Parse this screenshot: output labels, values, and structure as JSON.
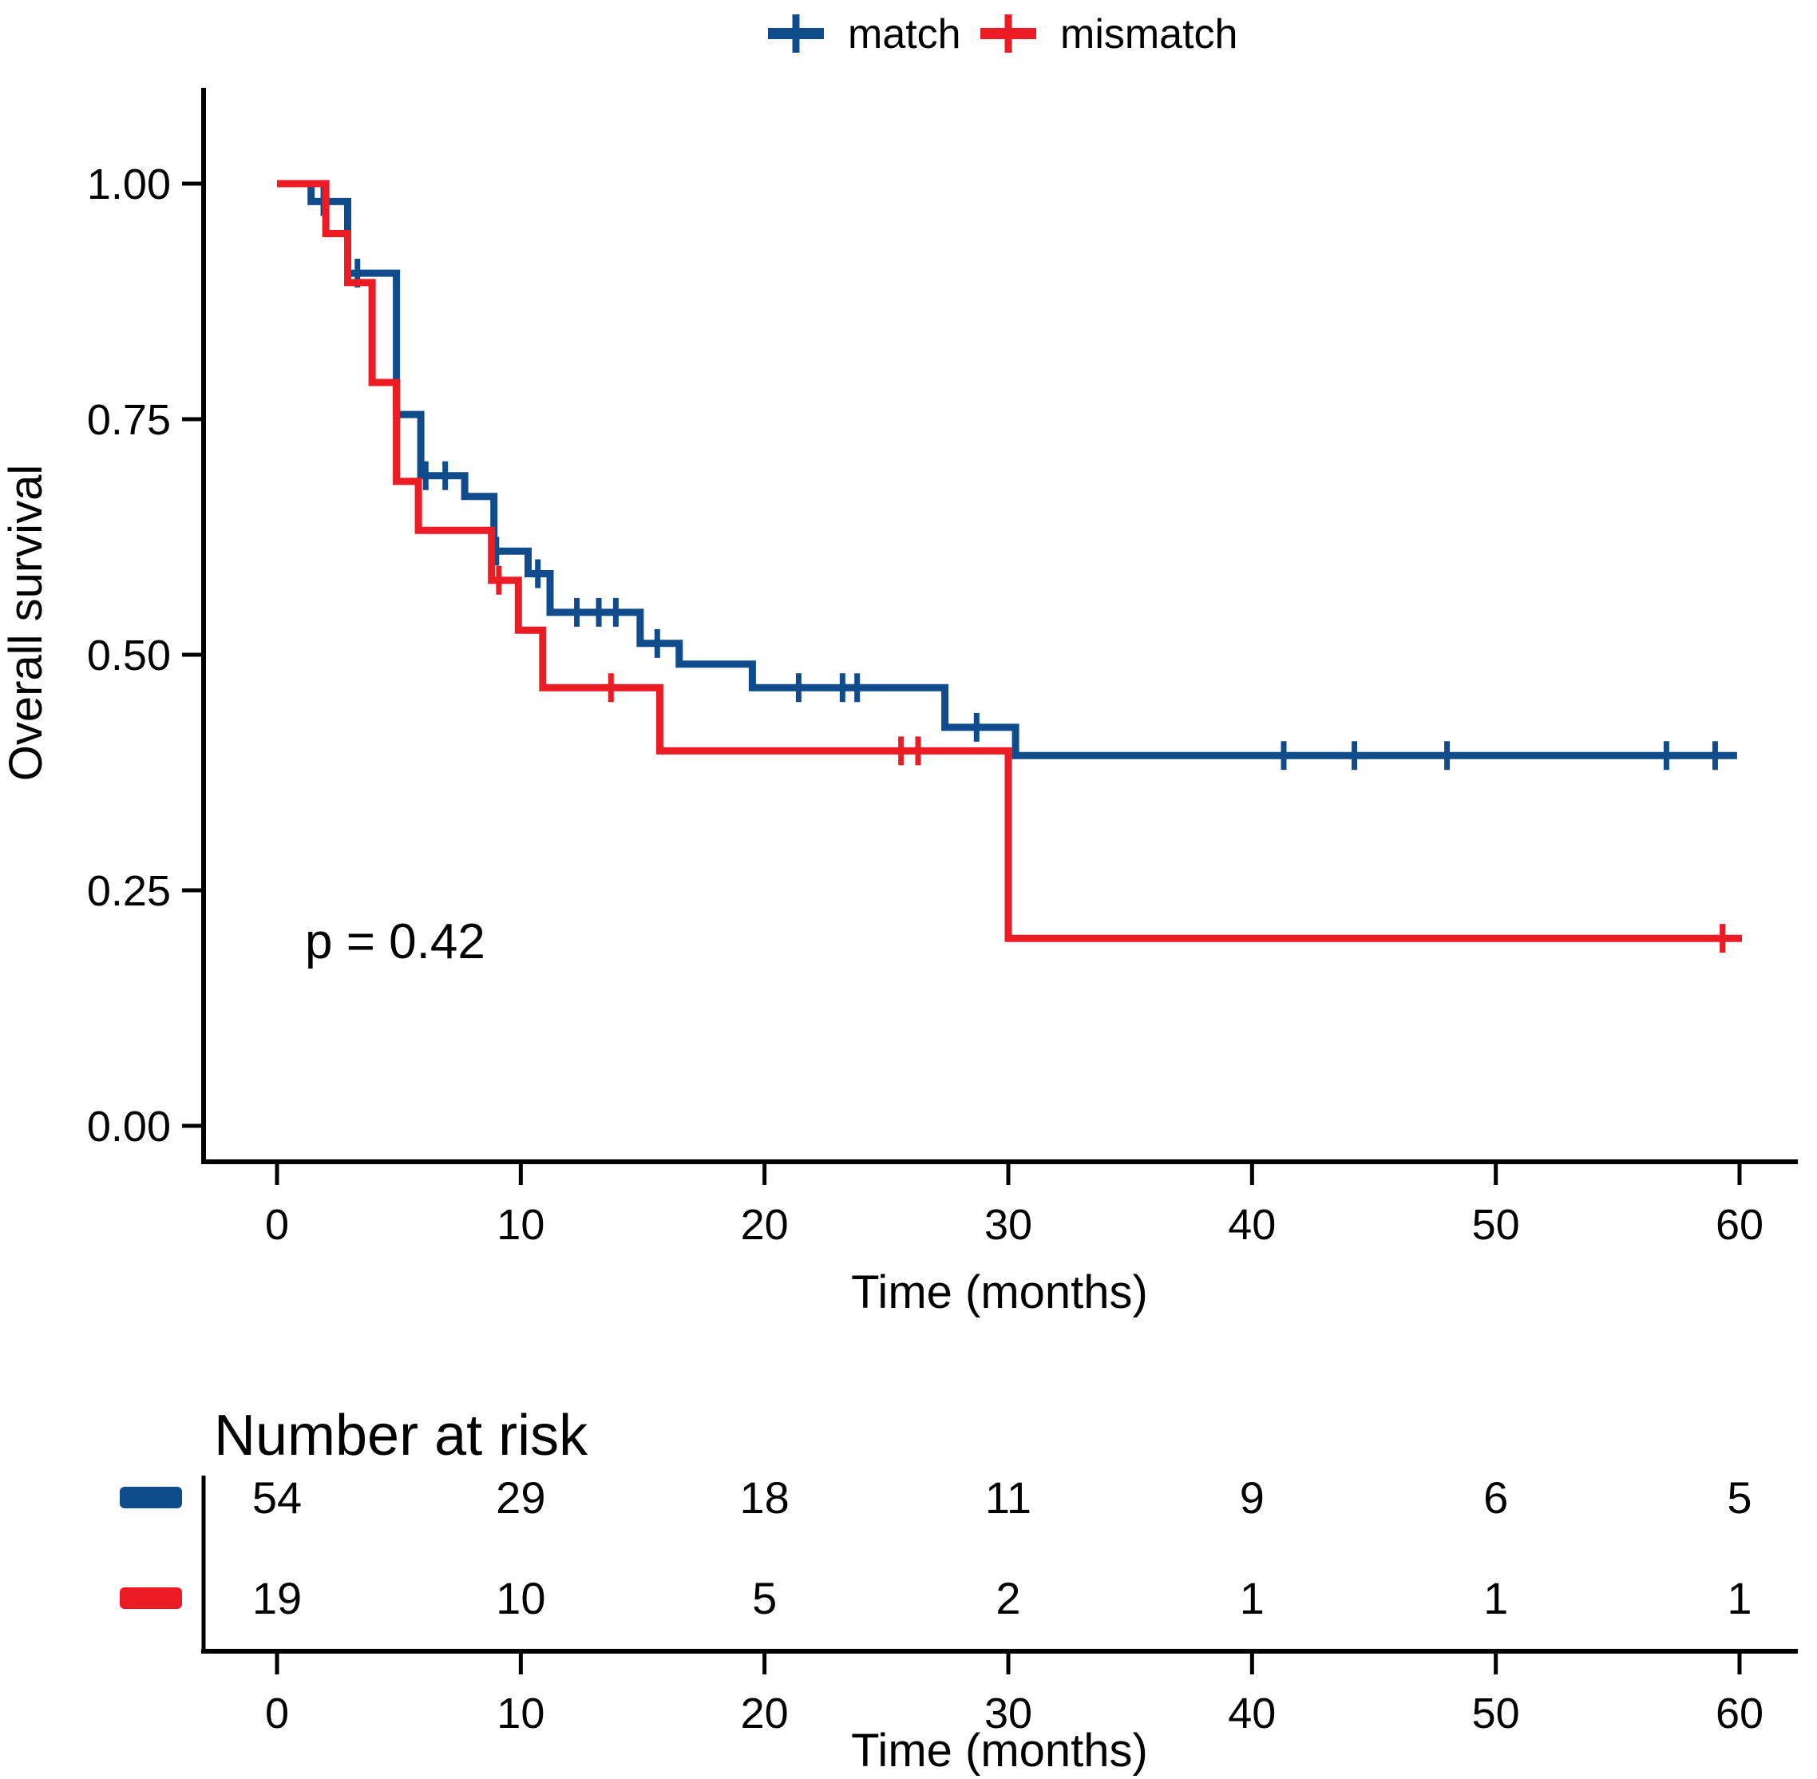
{
  "chart_data": {
    "type": "line",
    "subtype": "kaplan-meier-step",
    "title": "",
    "xlabel": "Time (months)",
    "ylabel": "Overall survival",
    "xlim": [
      0,
      63
    ],
    "ylim": [
      0.0,
      1.0
    ],
    "grid": "off",
    "legend_position": "top-center",
    "x_ticks": [
      0,
      10,
      20,
      30,
      40,
      50,
      60
    ],
    "y_ticks": [
      "1.00",
      "0.75",
      "0.50",
      "0.25",
      "0.00"
    ],
    "p_value_label": "p = 0.42",
    "legend": [
      {
        "label": "match",
        "color": "#104c8c"
      },
      {
        "label": "mismatch",
        "color": "#ec1c24"
      }
    ],
    "series": [
      {
        "name": "match",
        "color": "#104c8c",
        "start": [
          0,
          1.0
        ],
        "end_time": 59.9,
        "steps": [
          [
            1.4,
            0.981
          ],
          [
            2.9,
            0.905
          ],
          [
            4.9,
            0.755
          ],
          [
            5.9,
            0.69
          ],
          [
            7.7,
            0.668
          ],
          [
            8.9,
            0.61
          ],
          [
            10.3,
            0.586
          ],
          [
            11.2,
            0.545
          ],
          [
            14.9,
            0.512
          ],
          [
            16.5,
            0.49
          ],
          [
            19.5,
            0.465
          ],
          [
            27.4,
            0.423
          ],
          [
            30.3,
            0.393
          ]
        ],
        "censors": [
          [
            1.9,
            0.981
          ],
          [
            3.3,
            0.905
          ],
          [
            6.1,
            0.69
          ],
          [
            6.9,
            0.69
          ],
          [
            9.0,
            0.61
          ],
          [
            10.7,
            0.586
          ],
          [
            12.3,
            0.545
          ],
          [
            13.2,
            0.545
          ],
          [
            13.9,
            0.545
          ],
          [
            15.6,
            0.512
          ],
          [
            21.4,
            0.465
          ],
          [
            23.2,
            0.465
          ],
          [
            23.8,
            0.465
          ],
          [
            28.7,
            0.423
          ],
          [
            41.3,
            0.393
          ],
          [
            44.2,
            0.393
          ],
          [
            48.0,
            0.393
          ],
          [
            57.0,
            0.393
          ],
          [
            59.0,
            0.393
          ]
        ]
      },
      {
        "name": "mismatch",
        "color": "#ec1c24",
        "start": [
          0,
          1.0
        ],
        "end_time": 60.1,
        "steps": [
          [
            2.0,
            0.947
          ],
          [
            2.9,
            0.895
          ],
          [
            3.9,
            0.789
          ],
          [
            4.9,
            0.684
          ],
          [
            5.8,
            0.632
          ],
          [
            8.8,
            0.579
          ],
          [
            9.9,
            0.526
          ],
          [
            10.9,
            0.465
          ],
          [
            15.7,
            0.398
          ],
          [
            30.0,
            0.199
          ]
        ],
        "censors": [
          [
            9.1,
            0.579
          ],
          [
            13.7,
            0.465
          ],
          [
            25.6,
            0.398
          ],
          [
            26.3,
            0.398
          ],
          [
            59.3,
            0.199
          ]
        ]
      }
    ],
    "risk_table": {
      "title": "Number at risk",
      "xlabel": "Time (months)",
      "times": [
        0,
        10,
        20,
        30,
        40,
        50,
        60
      ],
      "rows": [
        {
          "name": "match",
          "color": "#104c8c",
          "values": [
            54,
            29,
            18,
            11,
            9,
            6,
            5
          ]
        },
        {
          "name": "mismatch",
          "color": "#ec1c24",
          "values": [
            19,
            10,
            5,
            2,
            1,
            1,
            1
          ]
        }
      ]
    }
  }
}
